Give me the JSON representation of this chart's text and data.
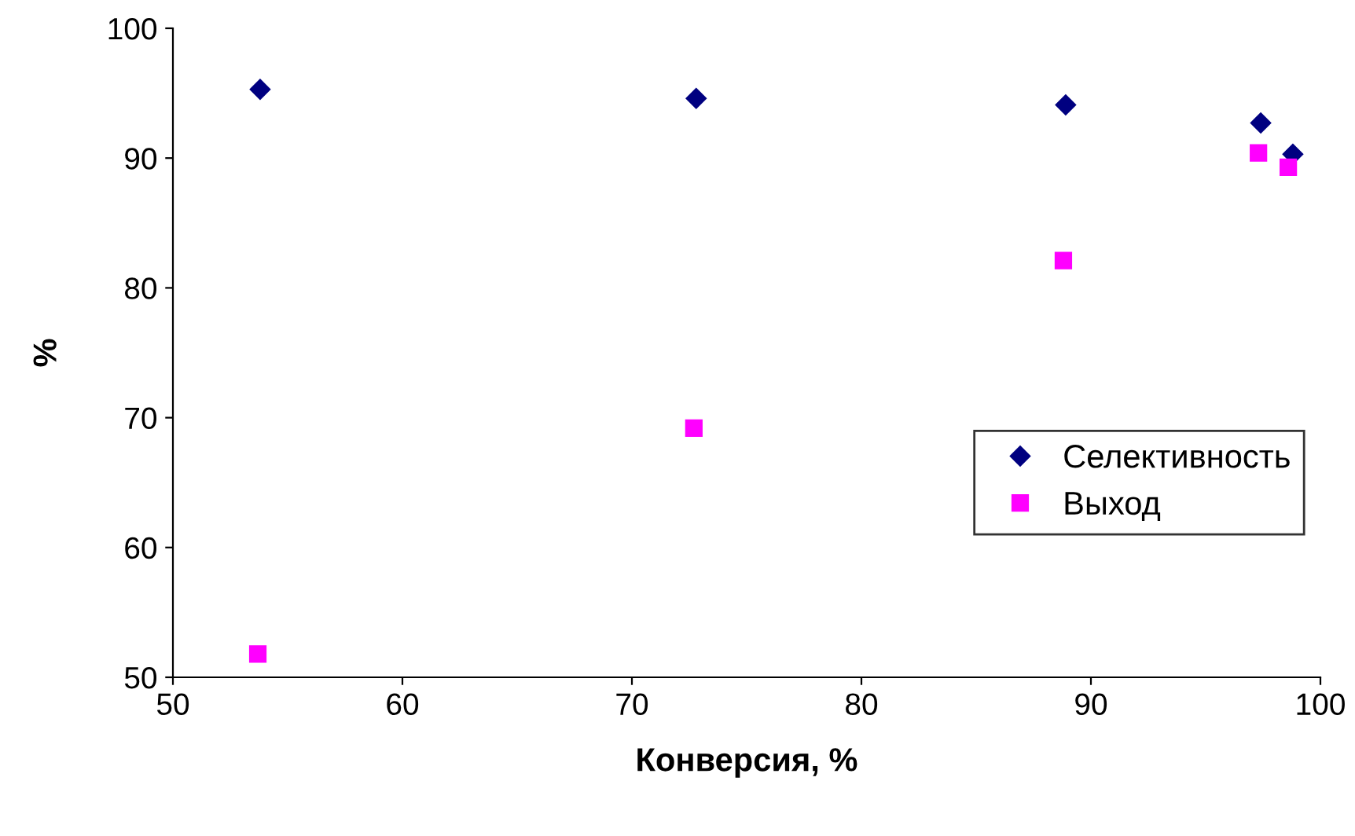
{
  "chart_data": {
    "type": "scatter",
    "xlabel": "Конверсия, %",
    "ylabel": "%",
    "xlim": [
      50,
      100
    ],
    "xticks": [
      50,
      60,
      70,
      80,
      90,
      100
    ],
    "ylim": [
      50,
      100
    ],
    "yticks": [
      50,
      60,
      70,
      80,
      90,
      100
    ],
    "grid": false,
    "legend": "right",
    "series": [
      {
        "name": "Селективность",
        "color": "#000080",
        "marker": "diamond",
        "x": [
          53.8,
          72.8,
          88.9,
          97.4,
          98.8
        ],
        "values": [
          95.3,
          94.6,
          94.1,
          92.7,
          90.3
        ]
      },
      {
        "name": "Выход",
        "color": "#ff00ff",
        "marker": "square",
        "x": [
          53.7,
          72.7,
          88.8,
          97.3,
          98.6
        ],
        "values": [
          51.8,
          69.2,
          82.1,
          90.4,
          89.3
        ]
      }
    ]
  }
}
